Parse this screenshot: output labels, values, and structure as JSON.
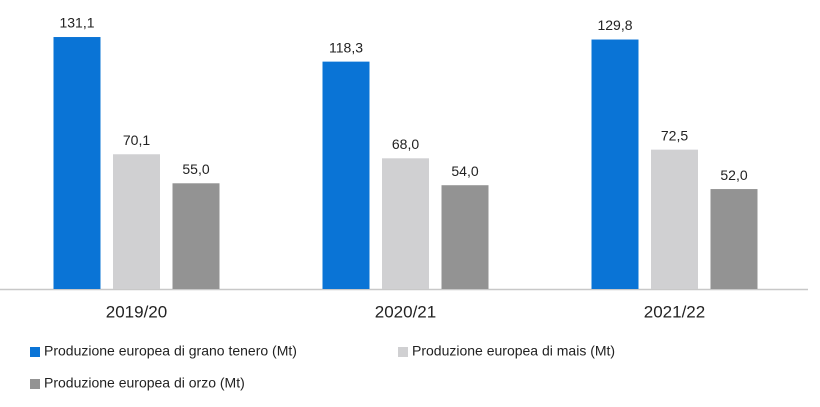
{
  "chart_data": {
    "type": "bar",
    "categories": [
      "2019/20",
      "2020/21",
      "2021/22"
    ],
    "series": [
      {
        "name": "Produzione europea di grano tenero (Mt)",
        "color": "#0a74d6",
        "values": [
          131.1,
          118.3,
          129.8
        ],
        "value_labels": [
          "131,1",
          "118,3",
          "129,8"
        ]
      },
      {
        "name": "Produzione europea di mais (Mt)",
        "color": "#d0d0d2",
        "values": [
          70.1,
          68.0,
          72.5
        ],
        "value_labels": [
          "70,1",
          "68,0",
          "72,5"
        ]
      },
      {
        "name": "Produzione europea di orzo (Mt)",
        "color": "#939393",
        "values": [
          55.0,
          54.0,
          52.0
        ],
        "value_labels": [
          "55,0",
          "54,0",
          "52,0"
        ]
      }
    ]
  }
}
